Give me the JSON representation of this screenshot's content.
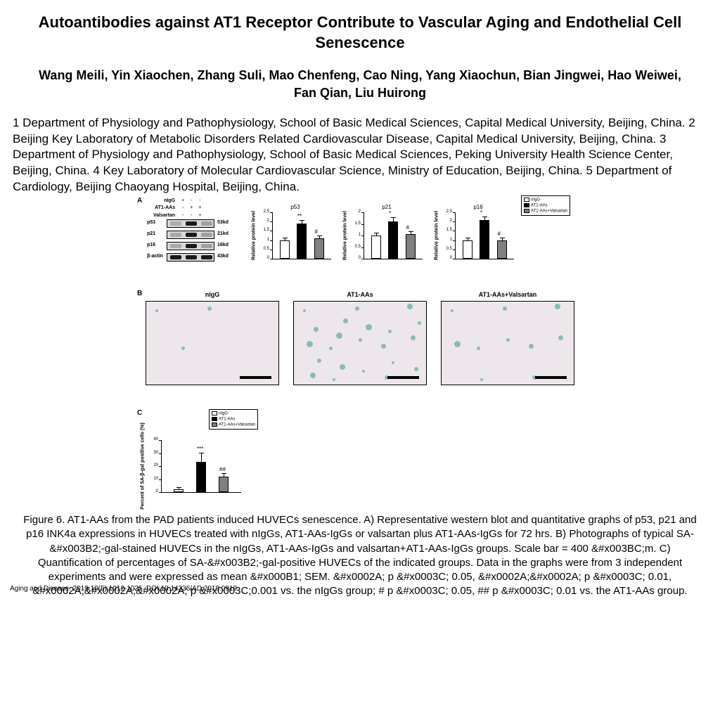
{
  "title": "Autoantibodies against AT1 Receptor Contribute to Vascular Aging and Endothelial Cell Senescence",
  "authors": "Wang Meili, Yin Xiaochen, Zhang Suli, Mao Chenfeng, Cao Ning, Yang Xiaochun, Bian Jingwei, Hao Weiwei, Fan Qian, Liu Huirong",
  "affiliations": "1 Department of Physiology and Pathophysiology, School of Basic Medical Sciences, Capital Medical University, Beijing, China. 2 Beijing Key Laboratory of Metabolic Disorders Related Cardiovascular Disease, Capital Medical University, Beijing, China. 3 Department of Physiology and Pathophysiology, School of Basic Medical Sciences, Peking University Health Science Center, Beijing, China. 4 Key Laboratory of Molecular Cardiovascular Science, Ministry of Education, Beijing, China. 5 Department of Cardiology, Beijing Chaoyang Hospital, Beijing, China.",
  "panelA": {
    "label": "A",
    "treatments": {
      "rows": [
        "nIgG",
        "AT1-AAs",
        "Valsartan"
      ],
      "cols": [
        [
          "+",
          "-",
          "-"
        ],
        [
          "-",
          "+",
          "+"
        ],
        [
          "-",
          "-",
          "+"
        ]
      ]
    },
    "blots": [
      {
        "name": "p53",
        "kd": "53kd",
        "bands": [
          0.3,
          1.0,
          0.5
        ]
      },
      {
        "name": "p21",
        "kd": "21kd",
        "bands": [
          0.35,
          1.0,
          0.55
        ]
      },
      {
        "name": "p16",
        "kd": "16kd",
        "bands": [
          0.3,
          1.0,
          0.5
        ]
      },
      {
        "name": "β-actin",
        "kd": "43kd",
        "bands": [
          1.0,
          1.0,
          1.0
        ]
      }
    ],
    "charts": [
      {
        "title": "p53",
        "ylabel": "Relative protein level",
        "ylim": [
          0,
          2.5
        ],
        "ytick_step": 0.5,
        "values": [
          1.0,
          1.9,
          1.1
        ],
        "errors": [
          0.1,
          0.15,
          0.1
        ],
        "sig": [
          "",
          "**",
          "#"
        ],
        "colors": [
          "#ffffff",
          "#000000",
          "#808080"
        ]
      },
      {
        "title": "p21",
        "ylabel": "Relative protein level",
        "ylim": [
          0,
          2.0
        ],
        "ytick_step": 0.5,
        "values": [
          1.0,
          1.6,
          1.05
        ],
        "errors": [
          0.08,
          0.15,
          0.1
        ],
        "sig": [
          "",
          "*",
          "#"
        ],
        "colors": [
          "#ffffff",
          "#000000",
          "#808080"
        ]
      },
      {
        "title": "p16",
        "ylabel": "Relative protein level",
        "ylim": [
          0,
          2.5
        ],
        "ytick_step": 0.5,
        "values": [
          1.0,
          2.1,
          1.0
        ],
        "errors": [
          0.1,
          0.15,
          0.1
        ],
        "sig": [
          "",
          "*",
          "#"
        ],
        "colors": [
          "#ffffff",
          "#000000",
          "#808080"
        ]
      }
    ],
    "legend": [
      "nIgG",
      "AT1-AAs",
      "AT1-AAs+Valsartan"
    ],
    "legend_colors": [
      "#ffffff",
      "#000000",
      "#808080"
    ]
  },
  "panelB": {
    "label": "B",
    "titles": [
      "nIgG",
      "AT1-AAs",
      "AT1-AAs+Valsartan"
    ],
    "cell_bg": "#ede6ea",
    "stain_color": "#5fa8a0",
    "stain_counts": [
      3,
      22,
      10
    ]
  },
  "panelC": {
    "label": "C",
    "ylabel": "Percent of SA-β-gal positive cells (%)",
    "ylim": [
      0,
      40
    ],
    "ytick_step": 10,
    "values": [
      2,
      23,
      12
    ],
    "errors": [
      1,
      7,
      2
    ],
    "sig": [
      "",
      "***",
      "##"
    ],
    "colors": [
      "#ffffff",
      "#000000",
      "#808080"
    ],
    "legend": [
      "nIgG",
      "AT1-AAs",
      "AT1-AAs+Valsartan"
    ]
  },
  "caption": "Figure 6.   AT1-AAs from the PAD patients induced HUVECs senescence. A) Representative western blot and quantitative graphs of p53, p21 and p16 INK4a  expressions in HUVECs treated with nIgGs, AT1-AAs-IgGs or valsartan plus AT1-AAs-IgGs for 72 hrs. B) Photographs of typical SA-&#x003B2;-gal-stained HUVECs in the nIgGs, AT1-AAs-IgGs and valsartan+AT1-AAs-IgGs groups. Scale bar = 400 &#x003BC;m. C) Quantification of percentages of SA-&#x003B2;-gal-positive HUVECs of the indicated groups. Data in the graphs were from 3 independent experiments and were expressed as mean &#x000B1; SEM. &#x0002A;  p  &#x0003C; 0.05, &#x0002A;&#x0002A;  p  &#x0003C; 0.01, &#x0002A;&#x0002A;&#x0002A;  p &#x0003C;0.001  vs.  the nIgGs group; #  p  &#x0003C; 0.05, ##  p  &#x0003C; 0.01  vs.  the AT1-AAs group.",
  "citation": "Aging and Disease. 2019;10(5):1012-1025. DOI:10.14336/AD.2018.0919"
}
